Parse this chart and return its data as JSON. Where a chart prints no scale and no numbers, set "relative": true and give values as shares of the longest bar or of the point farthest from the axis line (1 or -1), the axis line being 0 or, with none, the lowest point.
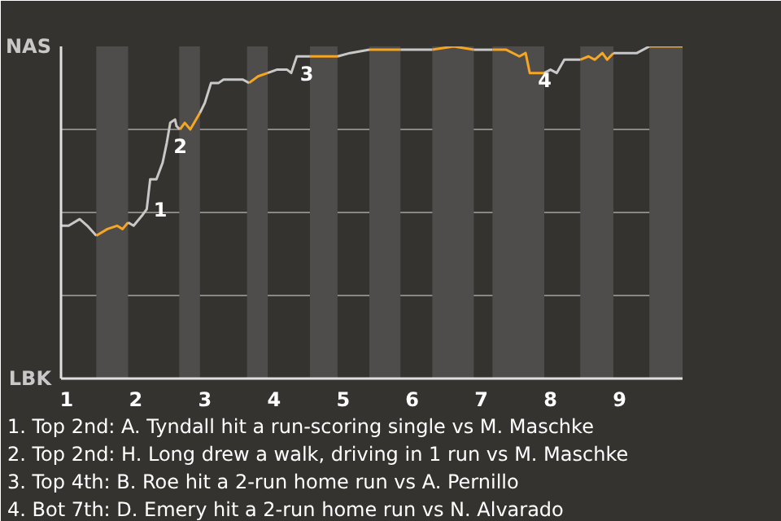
{
  "chart_data": {
    "type": "line",
    "series": [
      {
        "color": "#c8c8c8",
        "x": [
          0.92,
          1.03,
          1.19,
          1.3,
          1.43
        ],
        "values": [
          0.46,
          0.46,
          0.48,
          0.46,
          0.43
        ]
      },
      {
        "color": "#f5a623",
        "x": [
          1.43,
          1.59,
          1.73,
          1.81,
          1.89
        ],
        "values": [
          0.43,
          0.45,
          0.46,
          0.45,
          0.47
        ]
      },
      {
        "color": "#c8c8c9",
        "x": [
          1.89,
          1.97,
          2.09,
          2.16,
          2.21,
          2.3,
          2.39,
          2.45,
          2.5,
          2.57,
          2.59,
          2.64
        ],
        "values": [
          0.47,
          0.46,
          0.49,
          0.51,
          0.6,
          0.6,
          0.65,
          0.71,
          0.77,
          0.78,
          0.76,
          0.75
        ]
      },
      {
        "color": "#f5a624",
        "x": [
          2.64,
          2.71,
          2.79,
          2.93
        ],
        "values": [
          0.75,
          0.77,
          0.75,
          0.8
        ]
      },
      {
        "color": "#c8c9c8",
        "x": [
          2.93,
          3.0,
          3.09,
          3.2,
          3.27,
          3.39,
          3.55,
          3.64
        ],
        "values": [
          0.8,
          0.83,
          0.89,
          0.89,
          0.9,
          0.9,
          0.9,
          0.89
        ]
      },
      {
        "color": "#f5a722",
        "x": [
          3.64,
          3.77,
          3.91
        ],
        "values": [
          0.89,
          0.91,
          0.92
        ]
      },
      {
        "color": "#c9c8c8",
        "x": [
          3.91,
          4.04,
          4.19,
          4.25,
          4.33,
          4.52
        ],
        "values": [
          0.92,
          0.93,
          0.93,
          0.92,
          0.97,
          0.97
        ]
      },
      {
        "color": "#f6a623",
        "x": [
          4.52,
          4.73,
          4.92
        ],
        "values": [
          0.97,
          0.97,
          0.97
        ]
      },
      {
        "color": "#c7c8c8",
        "x": [
          4.92,
          5.1,
          5.38
        ],
        "values": [
          0.97,
          0.98,
          0.99
        ]
      },
      {
        "color": "#f4a623",
        "x": [
          5.38,
          5.62,
          5.83
        ],
        "values": [
          0.99,
          0.99,
          0.99
        ]
      },
      {
        "color": "#c8c7c8",
        "x": [
          5.83,
          6.09,
          6.29
        ],
        "values": [
          0.99,
          0.99,
          0.99
        ]
      },
      {
        "color": "#f5a522",
        "x": [
          6.29,
          6.6,
          6.89
        ],
        "values": [
          0.99,
          1.0,
          0.99
        ]
      },
      {
        "color": "#c8c8c7",
        "x": [
          6.89,
          7.05,
          7.16
        ],
        "values": [
          0.99,
          0.99,
          0.99
        ]
      },
      {
        "color": "#f5a625",
        "x": [
          7.16,
          7.36,
          7.55,
          7.64,
          7.7,
          7.91
        ],
        "values": [
          0.99,
          0.99,
          0.97,
          0.98,
          0.92,
          0.92
        ]
      },
      {
        "color": "#c9c9c9",
        "x": [
          7.91,
          8.0,
          8.09,
          8.2,
          8.43
        ],
        "values": [
          0.92,
          0.93,
          0.92,
          0.96,
          0.96
        ]
      },
      {
        "color": "#f6a724",
        "x": [
          8.43,
          8.55,
          8.64,
          8.75,
          8.82,
          8.91
        ],
        "values": [
          0.96,
          0.97,
          0.96,
          0.98,
          0.96,
          0.98
        ]
      },
      {
        "color": "#c7c7c7",
        "x": [
          8.91,
          9.18,
          9.25,
          9.43
        ],
        "values": [
          0.98,
          0.98,
          0.98,
          1.0
        ]
      },
      {
        "color": "#f4a522",
        "x": [
          9.43,
          9.91
        ],
        "values": [
          1.0,
          1.0
        ]
      }
    ],
    "xlim": [
      0.92,
      9.91
    ],
    "xticks": [
      1,
      2,
      3,
      4,
      5,
      6,
      7,
      8,
      9
    ],
    "relative": true,
    "grid": "y",
    "bands": [
      {
        "axis": "x",
        "from": 1.43,
        "to": 1.89,
        "color": "#4f4d4b"
      },
      {
        "axis": "x",
        "from": 2.63,
        "to": 2.93,
        "color": "#4f4d4b"
      },
      {
        "axis": "x",
        "from": 3.61,
        "to": 3.91,
        "color": "#4f4d4b"
      },
      {
        "axis": "x",
        "from": 4.52,
        "to": 4.92,
        "color": "#4f4d4b"
      },
      {
        "axis": "x",
        "from": 5.38,
        "to": 5.83,
        "color": "#4f4d4b"
      },
      {
        "axis": "x",
        "from": 6.29,
        "to": 6.89,
        "color": "#4f4d4b"
      },
      {
        "axis": "x",
        "from": 7.16,
        "to": 7.91,
        "color": "#4f4d4b"
      },
      {
        "axis": "x",
        "from": 8.43,
        "to": 8.91,
        "color": "#4f4d4b"
      },
      {
        "axis": "x",
        "from": 9.43,
        "to": 9.91,
        "color": "#4f4d4b"
      }
    ],
    "annotations": [
      "NAS",
      "LBK",
      {
        "text": "1",
        "x": 2.21,
        "y": 0.51
      },
      {
        "text": "2",
        "x": 2.5,
        "y": 0.7
      },
      {
        "text": "3",
        "x": 4.33,
        "y": 0.92
      },
      {
        "text": "4",
        "x": 7.77,
        "y": 0.9
      },
      "1. Top 2nd: A. Tyndall hit a run-scoring single vs M. Maschke",
      "2. Top 2nd: H. Long drew a walk, driving in 1 run vs M. Maschke",
      "3. Top 4th: B. Roe hit a 2-run home run vs A. Pernillo",
      "4. Bot 7th: D. Emery hit a 2-run home run vs N. Alvarado"
    ]
  }
}
